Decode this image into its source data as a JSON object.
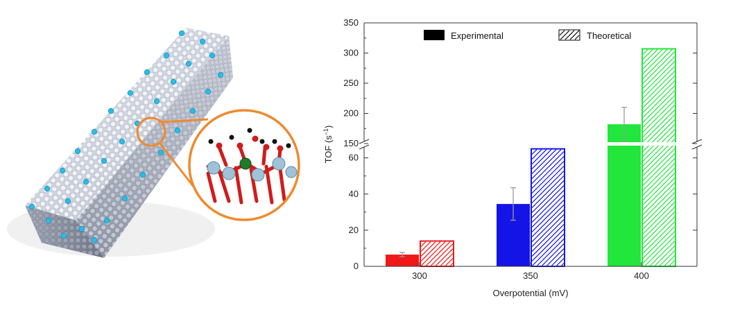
{
  "chart_data": {
    "type": "bar",
    "xlabel": "Overpotential (mV)",
    "ylabel": "TOF (s",
    "ylabel_sup": "−1",
    "ylabel_end": ")",
    "categories": [
      "300",
      "350",
      "400"
    ],
    "category_colors": [
      "#f01818",
      "#1414e6",
      "#22e63c"
    ],
    "series": [
      {
        "name": "Experimental",
        "style": "solid",
        "values": [
          6.5,
          34.5,
          182
        ],
        "errors": [
          1.2,
          9,
          28
        ]
      },
      {
        "name": "Theoretical",
        "style": "hatched",
        "values": [
          14,
          65,
          307
        ]
      }
    ],
    "y_axis_break": true,
    "ylim_lower": [
      0,
      66
    ],
    "ylim_upper": [
      150,
      350
    ],
    "yticks_lower": [
      0,
      20,
      40,
      60
    ],
    "yticks_upper": [
      150,
      200,
      250,
      300,
      350
    ],
    "legend_placement": "top-center",
    "grid": false
  },
  "illustration": {
    "description_icon": "nanorod-atomic-model-with-magnified-active-site"
  }
}
